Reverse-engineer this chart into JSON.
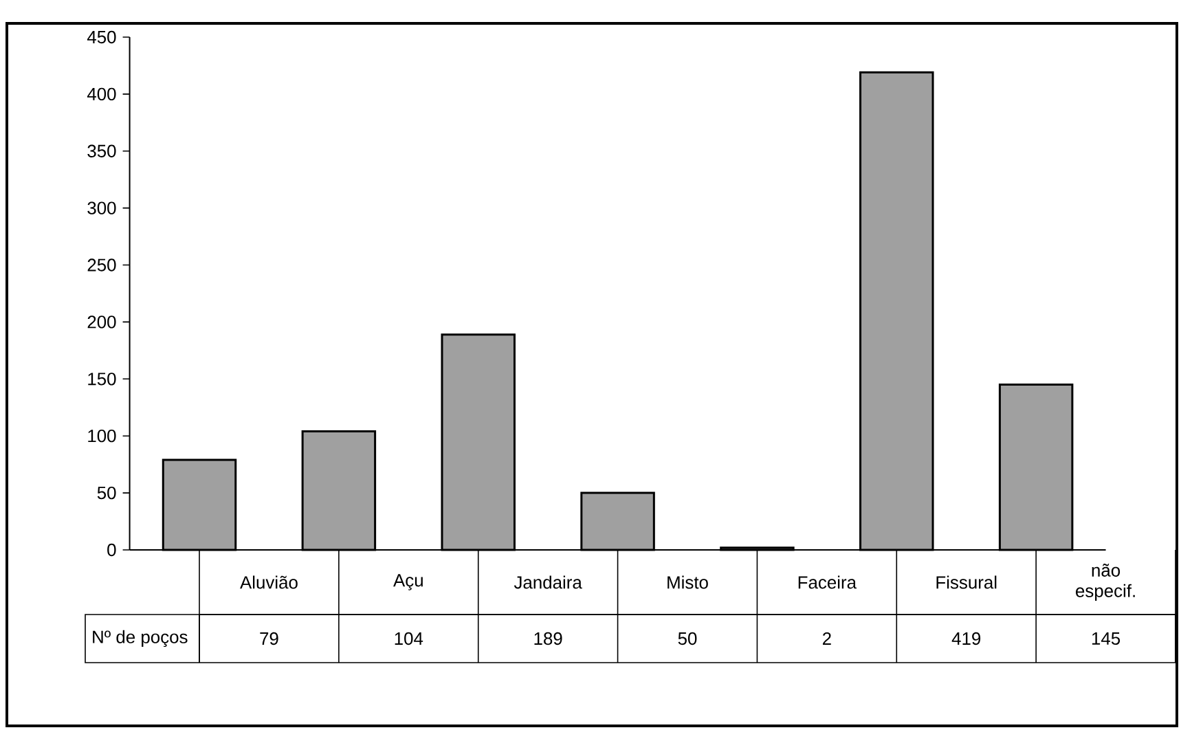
{
  "chart_data": {
    "type": "bar",
    "categories": [
      "Aluvião",
      "Açu",
      "Jandaira",
      "Misto",
      "Faceira",
      "Fissural",
      "não especif."
    ],
    "series": [
      {
        "name": "Nº de poços",
        "color": "#a0a0a0",
        "values": [
          79,
          104,
          189,
          50,
          2,
          419,
          145
        ]
      }
    ],
    "ylim": [
      0,
      450
    ],
    "yticks": [
      0,
      50,
      100,
      150,
      200,
      250,
      300,
      350,
      400,
      450
    ],
    "data_labels": true
  }
}
